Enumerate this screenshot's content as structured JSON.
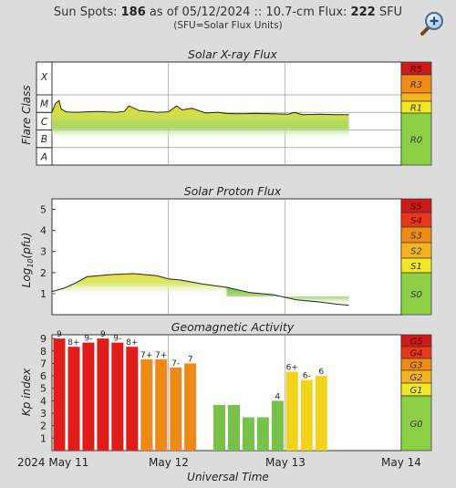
{
  "header": {
    "sunspots_label": "Sun Spots:",
    "sunspots_value": "186",
    "as_of": "as of 05/12/2024 ::",
    "flux_label": "10.7-cm Flux:",
    "flux_value": "222",
    "flux_unit": "SFU",
    "note": "(SFU=Solar Flux Units)"
  },
  "icons": {
    "zoom": "magnifier-plus-icon"
  },
  "x_axis": {
    "title": "Universal Time",
    "ticks": [
      "2024 May 11",
      "May 12",
      "May 13",
      "May 14"
    ]
  },
  "chart_data": [
    {
      "type": "area",
      "title": "Solar X-ray Flux",
      "ylabel": "Flare Class",
      "y_categories": [
        "A",
        "B",
        "C",
        "M",
        "X"
      ],
      "x_range": [
        0,
        3
      ],
      "x_unit": "days since 2024 May 11 00:00 UT",
      "series": [
        {
          "x": [
            0,
            0.03,
            0.06,
            0.08,
            0.12,
            0.2,
            0.3,
            0.4,
            0.55,
            0.62,
            0.66,
            0.75,
            0.9,
            1.0,
            1.07,
            1.12,
            1.2,
            1.32,
            1.42,
            1.5,
            1.6,
            1.75,
            1.9,
            2.03,
            2.08,
            2.15,
            2.3,
            2.45,
            2.55
          ],
          "values": [
            0.8,
            1.9,
            2.3,
            1.2,
            0.85,
            0.8,
            0.85,
            0.9,
            0.8,
            0.9,
            1.6,
            1.0,
            0.8,
            0.85,
            1.6,
            1.1,
            1.3,
            0.7,
            0.8,
            0.65,
            0.6,
            0.65,
            0.6,
            0.55,
            0.8,
            0.5,
            0.55,
            0.5,
            0.5
          ]
        }
      ],
      "scale_labels": [
        "R5",
        "R3",
        "R1",
        "R0"
      ],
      "colors": {
        "R5": "#cc1b1b",
        "R3": "#f08a16",
        "R1": "#f2e628",
        "R0": "#8ccf45"
      }
    },
    {
      "type": "area",
      "title": "Solar Proton Flux",
      "ylabel": "Log10(pfu)",
      "yticks": [
        1,
        2,
        3,
        4,
        5
      ],
      "ylim": [
        0,
        5.5
      ],
      "x_range": [
        0,
        3
      ],
      "x_unit": "days since 2024 May 11 00:00 UT",
      "series": [
        {
          "x": [
            0,
            0.1,
            0.2,
            0.3,
            0.5,
            0.7,
            0.9,
            1.0,
            1.1,
            1.3,
            1.5,
            1.7,
            1.9,
            2.1,
            2.3,
            2.45,
            2.55
          ],
          "values": [
            1.1,
            1.25,
            1.5,
            1.8,
            1.9,
            1.95,
            1.85,
            1.7,
            1.65,
            1.45,
            1.3,
            1.05,
            0.95,
            0.7,
            0.6,
            0.5,
            0.45
          ]
        }
      ],
      "scale_labels": [
        "S5",
        "S4",
        "S3",
        "S2",
        "S1",
        "S0"
      ],
      "colors": {
        "S5": "#cc1b1b",
        "S4": "#e8371a",
        "S3": "#f08a16",
        "S2": "#f5b321",
        "S1": "#f2e628",
        "S0": "#8ccf45"
      }
    },
    {
      "type": "bar",
      "title": "Geomagnetic Activity",
      "ylabel": "Kp index",
      "ylim": [
        0,
        9
      ],
      "yticks": [
        1,
        2,
        3,
        4,
        5,
        6,
        7,
        8,
        9
      ],
      "bar_width_days": 0.125,
      "x_unit": "days since 2024 May 11 00:00 UT",
      "bars": [
        {
          "x": 0.0,
          "value": 9,
          "label": "9"
        },
        {
          "x": 0.125,
          "value": 8.33,
          "label": "8+"
        },
        {
          "x": 0.25,
          "value": 8.67,
          "label": "9-"
        },
        {
          "x": 0.375,
          "value": 9,
          "label": "9"
        },
        {
          "x": 0.5,
          "value": 8.67,
          "label": "9-"
        },
        {
          "x": 0.625,
          "value": 8.33,
          "label": "8+"
        },
        {
          "x": 0.75,
          "value": 7.33,
          "label": "7+"
        },
        {
          "x": 0.875,
          "value": 7.33,
          "label": "7+"
        },
        {
          "x": 1.0,
          "value": 6.67,
          "label": "7-"
        },
        {
          "x": 1.125,
          "value": 7,
          "label": "7"
        },
        {
          "x": 1.25,
          "value": 0,
          "label": ""
        },
        {
          "x": 1.375,
          "value": 3.67,
          "label": ""
        },
        {
          "x": 1.5,
          "value": 3.67,
          "label": ""
        },
        {
          "x": 1.625,
          "value": 2.67,
          "label": ""
        },
        {
          "x": 1.75,
          "value": 2.67,
          "label": ""
        },
        {
          "x": 1.875,
          "value": 4,
          "label": "4"
        },
        {
          "x": 2.0,
          "value": 6.33,
          "label": "6+"
        },
        {
          "x": 2.125,
          "value": 5.67,
          "label": "6-"
        },
        {
          "x": 2.25,
          "value": 6,
          "label": "6"
        }
      ],
      "scale_labels": [
        "G5",
        "G4",
        "G3",
        "G2",
        "G1",
        "G0"
      ],
      "colors": {
        "G5": "#cc1b1b",
        "G4": "#e8371a",
        "G3": "#f08a16",
        "G2": "#f5b321",
        "G1": "#f2e628",
        "G0": "#8ccf45",
        "kp_green": "#79c24a",
        "kp_yellow": "#f2d21b",
        "kp_orange": "#f08a16",
        "kp_red": "#e21b1b"
      }
    }
  ]
}
